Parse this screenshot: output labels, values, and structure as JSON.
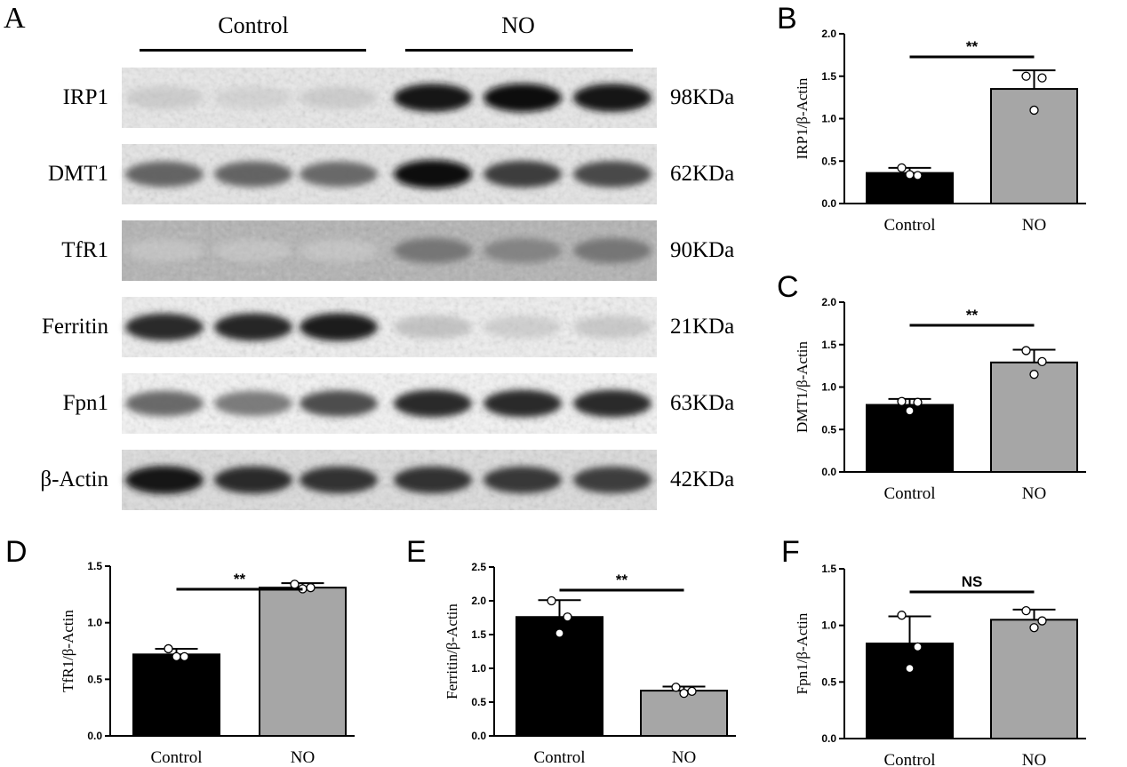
{
  "figure": {
    "panel_a": {
      "letter": "A",
      "groups": [
        {
          "name": "Control"
        },
        {
          "name": "NO"
        }
      ],
      "proteins": [
        {
          "name": "IRP1",
          "mw": "98KDa",
          "bg": "#e9e9e9",
          "intensity": [
            0.22,
            0.18,
            0.22,
            0.95,
            1.0,
            0.95
          ]
        },
        {
          "name": "DMT1",
          "mw": "62KDa",
          "bg": "#e6e6e6",
          "intensity": [
            0.62,
            0.62,
            0.6,
            1.0,
            0.78,
            0.72
          ]
        },
        {
          "name": "TfR1",
          "mw": "90KDa",
          "bg": "#b2b2b2",
          "intensity": [
            0.1,
            0.1,
            0.08,
            0.55,
            0.5,
            0.55
          ]
        },
        {
          "name": "Ferritin",
          "mw": "21KDa",
          "bg": "#f0f0f0",
          "intensity": [
            0.85,
            0.88,
            0.92,
            0.28,
            0.22,
            0.25
          ]
        },
        {
          "name": "Fpn1",
          "mw": "63KDa",
          "bg": "#f5f5f5",
          "intensity": [
            0.6,
            0.55,
            0.7,
            0.85,
            0.85,
            0.85
          ]
        },
        {
          "name": "β-Actin",
          "mw": "42KDa",
          "bg": "#dcdcdc",
          "intensity": [
            0.95,
            0.85,
            0.82,
            0.82,
            0.8,
            0.78
          ]
        }
      ]
    }
  },
  "chart_data": [
    {
      "type": "bar",
      "letter": "B",
      "categories": [
        "Control",
        "NO"
      ],
      "values": [
        0.36,
        1.35
      ],
      "error": [
        0.06,
        0.22
      ],
      "points": [
        [
          0.42,
          0.34,
          0.33
        ],
        [
          1.5,
          1.1,
          1.48
        ]
      ],
      "ylabel": "IRP1/β-Actin",
      "ylim": [
        0,
        2.0
      ],
      "yticks": [
        "0.0",
        "0.5",
        "1.0",
        "1.5",
        "2.0"
      ],
      "significance": "**",
      "colors": [
        "#000000",
        "#a6a6a6"
      ]
    },
    {
      "type": "bar",
      "letter": "C",
      "categories": [
        "Control",
        "NO"
      ],
      "values": [
        0.79,
        1.29
      ],
      "error": [
        0.07,
        0.15
      ],
      "points": [
        [
          0.83,
          0.72,
          0.82
        ],
        [
          1.43,
          1.15,
          1.3
        ]
      ],
      "ylabel": "DMT1/β-Actin",
      "ylim": [
        0,
        2.0
      ],
      "yticks": [
        "0.0",
        "0.5",
        "1.0",
        "1.5",
        "2.0"
      ],
      "significance": "**",
      "colors": [
        "#000000",
        "#a6a6a6"
      ]
    },
    {
      "type": "bar",
      "letter": "D",
      "categories": [
        "Control",
        "NO"
      ],
      "values": [
        0.72,
        1.31
      ],
      "error": [
        0.05,
        0.04
      ],
      "points": [
        [
          0.77,
          0.7,
          0.7
        ],
        [
          1.34,
          1.3,
          1.31
        ]
      ],
      "ylabel": "TfR1/β-Actin",
      "ylim": [
        0,
        1.5
      ],
      "yticks": [
        "0.0",
        "0.5",
        "1.0",
        "1.5"
      ],
      "significance": "**",
      "colors": [
        "#000000",
        "#a6a6a6"
      ]
    },
    {
      "type": "bar",
      "letter": "E",
      "categories": [
        "Control",
        "NO"
      ],
      "values": [
        1.76,
        0.67
      ],
      "error": [
        0.25,
        0.06
      ],
      "points": [
        [
          2.0,
          1.52,
          1.76
        ],
        [
          0.72,
          0.63,
          0.66
        ]
      ],
      "ylabel": "Ferritin/β-Actin",
      "ylim": [
        0,
        2.5
      ],
      "yticks": [
        "0.0",
        "0.5",
        "1.0",
        "1.5",
        "2.0",
        "2.5"
      ],
      "significance": "**",
      "colors": [
        "#000000",
        "#a6a6a6"
      ]
    },
    {
      "type": "bar",
      "letter": "F",
      "categories": [
        "Control",
        "NO"
      ],
      "values": [
        0.84,
        1.05
      ],
      "error": [
        0.24,
        0.09
      ],
      "points": [
        [
          1.09,
          0.62,
          0.81
        ],
        [
          1.13,
          0.98,
          1.04
        ]
      ],
      "ylabel": "Fpn1/β-Actin",
      "ylim": [
        0,
        1.5
      ],
      "yticks": [
        "0.0",
        "0.5",
        "1.0",
        "1.5"
      ],
      "significance": "NS",
      "colors": [
        "#000000",
        "#a6a6a6"
      ]
    }
  ]
}
